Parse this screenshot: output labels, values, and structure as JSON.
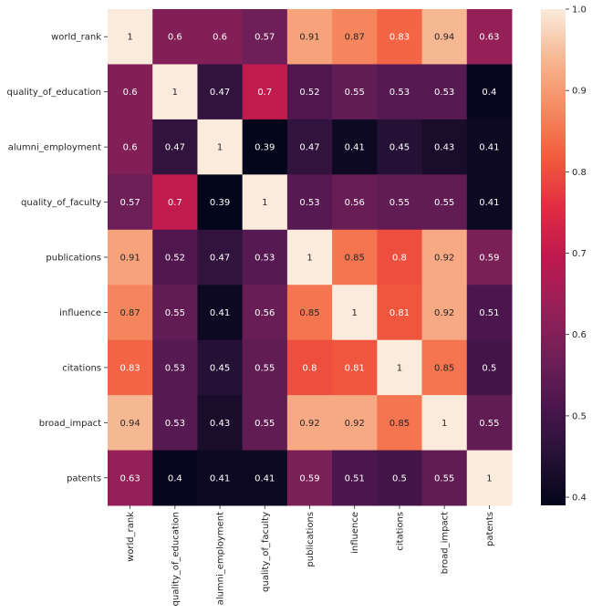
{
  "chart_data": {
    "type": "heatmap",
    "title": "",
    "xlabel": "",
    "ylabel": "",
    "labels": [
      "world_rank",
      "quality_of_education",
      "alumni_employment",
      "quality_of_faculty",
      "publications",
      "influence",
      "citations",
      "broad_impact",
      "patents"
    ],
    "matrix": [
      [
        1,
        0.6,
        0.6,
        0.57,
        0.91,
        0.87,
        0.83,
        0.94,
        0.63
      ],
      [
        0.6,
        1,
        0.47,
        0.7,
        0.52,
        0.55,
        0.53,
        0.53,
        0.4
      ],
      [
        0.6,
        0.47,
        1,
        0.39,
        0.47,
        0.41,
        0.45,
        0.43,
        0.41
      ],
      [
        0.57,
        0.7,
        0.39,
        1,
        0.53,
        0.56,
        0.55,
        0.55,
        0.41
      ],
      [
        0.91,
        0.52,
        0.47,
        0.53,
        1,
        0.85,
        0.8,
        0.92,
        0.59
      ],
      [
        0.87,
        0.55,
        0.41,
        0.56,
        0.85,
        1,
        0.81,
        0.92,
        0.51
      ],
      [
        0.83,
        0.53,
        0.45,
        0.55,
        0.8,
        0.81,
        1,
        0.85,
        0.5
      ],
      [
        0.94,
        0.53,
        0.43,
        0.55,
        0.92,
        0.92,
        0.85,
        1,
        0.55
      ],
      [
        0.63,
        0.4,
        0.41,
        0.41,
        0.59,
        0.51,
        0.5,
        0.55,
        1
      ]
    ],
    "annotations": true,
    "colormap": "rocket",
    "vmin": 0.39,
    "vmax": 1.0,
    "colorbar_ticks": [
      "0.4",
      "0.5",
      "0.6",
      "0.7",
      "0.8",
      "0.9",
      "1.0"
    ],
    "grid": false,
    "legend": "colorbar-right"
  }
}
